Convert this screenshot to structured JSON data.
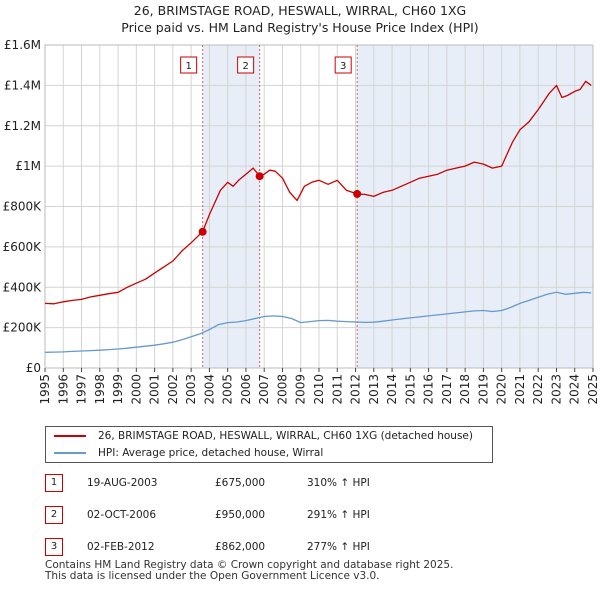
{
  "title_line1": "26, BRIMSTAGE ROAD, HESWALL, WIRRAL, CH60 1XG",
  "title_line2": "Price paid vs. HM Land Registry's House Price Index (HPI)",
  "chart_data": {
    "type": "line",
    "title": "26, BRIMSTAGE ROAD, HESWALL, WIRRAL, CH60 1XG — Price paid vs. HM Land Registry's House Price Index (HPI)",
    "xlabel": "",
    "ylabel": "",
    "xlim": [
      1995,
      2025
    ],
    "ylim": [
      0,
      1600000
    ],
    "grid": true,
    "x_ticks": [
      1995,
      1996,
      1997,
      1998,
      1999,
      2000,
      2001,
      2002,
      2003,
      2004,
      2005,
      2006,
      2007,
      2008,
      2009,
      2010,
      2011,
      2012,
      2013,
      2014,
      2015,
      2016,
      2017,
      2018,
      2019,
      2020,
      2021,
      2022,
      2023,
      2024,
      2025
    ],
    "y_ticks": [
      0,
      200000,
      400000,
      600000,
      800000,
      1000000,
      1200000,
      1400000,
      1600000
    ],
    "y_tick_labels": [
      "£0",
      "£200K",
      "£400K",
      "£600K",
      "£800K",
      "£1M",
      "£1.2M",
      "£1.4M",
      "£1.6M"
    ],
    "shaded_spans": [
      [
        2003.63,
        2006.75
      ],
      [
        2012.09,
        2025.0
      ]
    ],
    "series": [
      {
        "name": "26, BRIMSTAGE ROAD, HESWALL, WIRRAL, CH60 1XG (detached house)",
        "color": "#cc0000",
        "x": [
          1995.0,
          1995.5,
          1996.0,
          1996.5,
          1997.0,
          1997.5,
          1998.0,
          1998.5,
          1999.0,
          1999.5,
          2000.0,
          2000.5,
          2001.0,
          2001.5,
          2002.0,
          2002.5,
          2003.0,
          2003.63,
          2004.0,
          2004.3,
          2004.6,
          2005.0,
          2005.3,
          2005.6,
          2006.0,
          2006.4,
          2006.75,
          2007.0,
          2007.3,
          2007.6,
          2008.0,
          2008.4,
          2008.8,
          2009.2,
          2009.6,
          2010.0,
          2010.5,
          2011.0,
          2011.5,
          2012.09,
          2012.5,
          2013.0,
          2013.5,
          2014.0,
          2014.5,
          2015.0,
          2015.5,
          2016.0,
          2016.5,
          2017.0,
          2017.5,
          2018.0,
          2018.5,
          2019.0,
          2019.5,
          2020.0,
          2020.3,
          2020.6,
          2021.0,
          2021.5,
          2022.0,
          2022.3,
          2022.6,
          2023.0,
          2023.3,
          2023.6,
          2024.0,
          2024.3,
          2024.6,
          2024.9
        ],
        "y": [
          320000,
          318000,
          328000,
          335000,
          340000,
          352000,
          360000,
          368000,
          375000,
          400000,
          420000,
          440000,
          470000,
          500000,
          530000,
          580000,
          620000,
          675000,
          760000,
          820000,
          880000,
          920000,
          900000,
          930000,
          960000,
          990000,
          950000,
          960000,
          980000,
          975000,
          940000,
          870000,
          830000,
          900000,
          920000,
          930000,
          910000,
          930000,
          880000,
          862000,
          860000,
          850000,
          870000,
          880000,
          900000,
          920000,
          940000,
          950000,
          960000,
          980000,
          990000,
          1000000,
          1020000,
          1010000,
          990000,
          1000000,
          1060000,
          1120000,
          1180000,
          1220000,
          1280000,
          1320000,
          1360000,
          1400000,
          1340000,
          1350000,
          1370000,
          1380000,
          1420000,
          1400000
        ]
      },
      {
        "name": "HPI: Average price, detached house, Wirral",
        "color": "#6699cc",
        "x": [
          1995.0,
          1995.5,
          1996.0,
          1996.5,
          1997.0,
          1997.5,
          1998.0,
          1998.5,
          1999.0,
          1999.5,
          2000.0,
          2000.5,
          2001.0,
          2001.5,
          2002.0,
          2002.5,
          2003.0,
          2003.5,
          2004.0,
          2004.5,
          2005.0,
          2005.5,
          2006.0,
          2006.5,
          2007.0,
          2007.5,
          2008.0,
          2008.5,
          2009.0,
          2009.5,
          2010.0,
          2010.5,
          2011.0,
          2011.5,
          2012.0,
          2012.5,
          2013.0,
          2013.5,
          2014.0,
          2014.5,
          2015.0,
          2015.5,
          2016.0,
          2016.5,
          2017.0,
          2017.5,
          2018.0,
          2018.5,
          2019.0,
          2019.5,
          2020.0,
          2020.5,
          2021.0,
          2021.5,
          2022.0,
          2022.5,
          2023.0,
          2023.5,
          2024.0,
          2024.5,
          2024.9
        ],
        "y": [
          78000,
          79000,
          80000,
          82000,
          84000,
          86000,
          88000,
          91000,
          94000,
          98000,
          103000,
          108000,
          113000,
          120000,
          128000,
          140000,
          155000,
          170000,
          190000,
          215000,
          225000,
          228000,
          235000,
          245000,
          255000,
          258000,
          255000,
          245000,
          225000,
          230000,
          235000,
          236000,
          232000,
          230000,
          228000,
          226000,
          227000,
          232000,
          238000,
          243000,
          248000,
          253000,
          258000,
          263000,
          268000,
          273000,
          278000,
          283000,
          285000,
          280000,
          285000,
          300000,
          320000,
          335000,
          350000,
          365000,
          375000,
          365000,
          370000,
          375000,
          372000
        ]
      }
    ],
    "sales": [
      {
        "label": "1",
        "x": 2003.63,
        "y": 675000,
        "date": "19-AUG-2003",
        "price": "£675,000",
        "hpi": "310% ↑ HPI"
      },
      {
        "label": "2",
        "x": 2006.75,
        "y": 950000,
        "date": "02-OCT-2006",
        "price": "£950,000",
        "hpi": "291% ↑ HPI"
      },
      {
        "label": "3",
        "x": 2012.09,
        "y": 862000,
        "date": "02-FEB-2012",
        "price": "£862,000",
        "hpi": "277% ↑ HPI"
      }
    ]
  },
  "legend": {
    "property_label": "26, BRIMSTAGE ROAD, HESWALL, WIRRAL, CH60 1XG (detached house)",
    "hpi_label": "HPI: Average price, detached house, Wirral"
  },
  "footer": {
    "line1": "Contains HM Land Registry data © Crown copyright and database right 2025.",
    "line2": "This data is licensed under the Open Government Licence v3.0."
  }
}
